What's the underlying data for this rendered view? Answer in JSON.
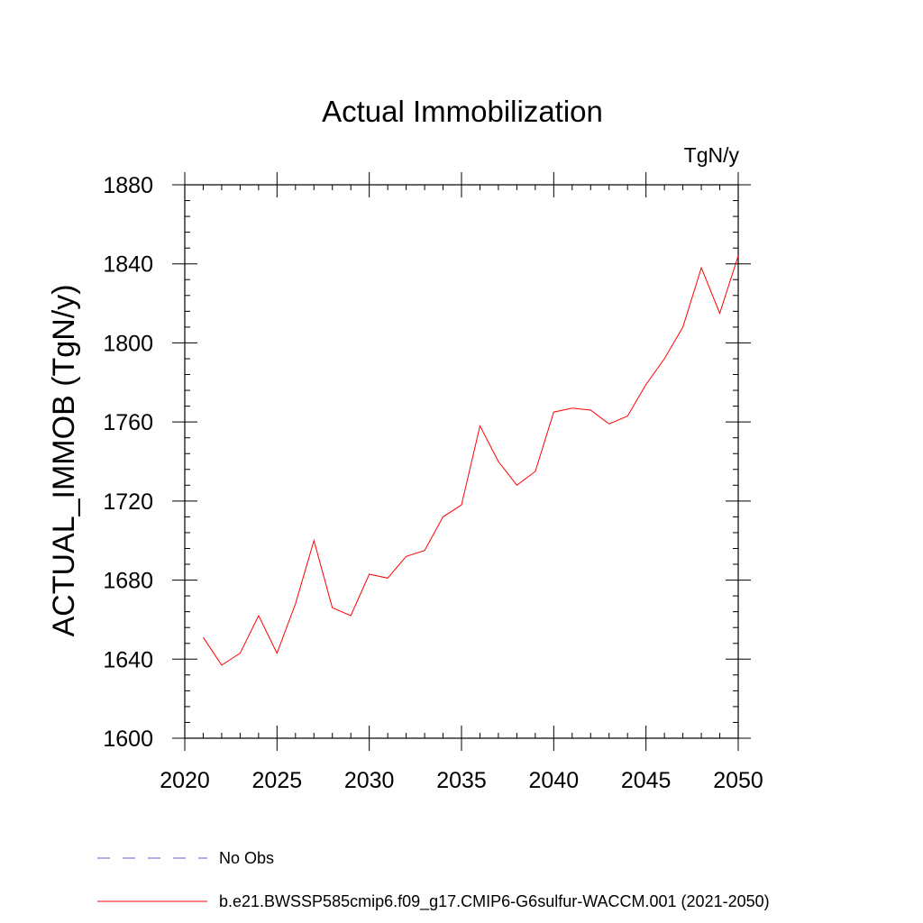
{
  "chart_data": {
    "type": "line",
    "title": "Actual Immobilization",
    "units": "TgN/y",
    "ylabel": "ACTUAL_IMMOB  (TgN/y)",
    "xlabel": "",
    "xlim": [
      2020,
      2050
    ],
    "ylim": [
      1600,
      1880
    ],
    "xticks": [
      2020,
      2025,
      2030,
      2035,
      2040,
      2045,
      2050
    ],
    "yticks": [
      1600,
      1640,
      1680,
      1720,
      1760,
      1800,
      1840,
      1880
    ],
    "grid": false,
    "legend_placement": "bottom",
    "series": [
      {
        "name": "b.e21.BWSSP585cmip6.f09_g17.CMIP6-G6sulfur-WACCM.001 (2021-2050)",
        "color": "#ff0000",
        "style": "solid",
        "x": [
          2021,
          2022,
          2023,
          2024,
          2025,
          2026,
          2027,
          2028,
          2029,
          2030,
          2031,
          2032,
          2033,
          2034,
          2035,
          2036,
          2037,
          2038,
          2039,
          2040,
          2041,
          2042,
          2043,
          2044,
          2045,
          2046,
          2047,
          2048,
          2049,
          2050
        ],
        "values": [
          1651,
          1637,
          1643,
          1662,
          1643,
          1668,
          1700,
          1666,
          1662,
          1683,
          1681,
          1692,
          1695,
          1712,
          1718,
          1758,
          1740,
          1728,
          1735,
          1765,
          1767,
          1766,
          1759,
          1763,
          1779,
          1792,
          1808,
          1838,
          1815,
          1844
        ]
      }
    ],
    "legend": [
      {
        "label": "No Obs",
        "color": "#6a5acd",
        "style": "dashed"
      },
      {
        "label": "b.e21.BWSSP585cmip6.f09_g17.CMIP6-G6sulfur-WACCM.001 (2021-2050)",
        "color": "#ff0000",
        "style": "solid"
      }
    ]
  }
}
